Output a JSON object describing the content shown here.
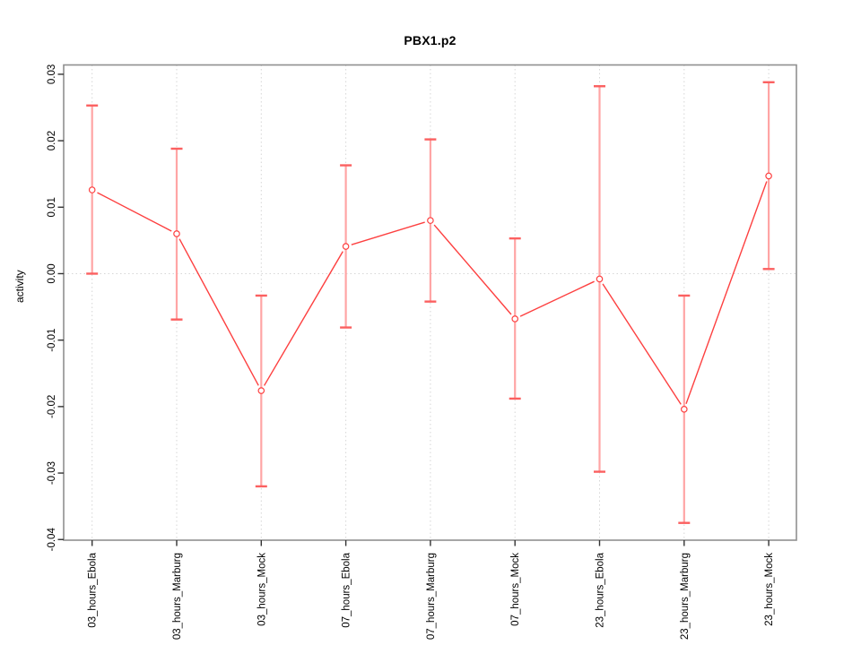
{
  "chart_data": {
    "type": "line",
    "title": "PBX1.p2",
    "xlabel": "",
    "ylabel": "activity",
    "categories": [
      "03_hours_Ebola",
      "03_hours_Marburg",
      "03_hours_Mock",
      "07_hours_Ebola",
      "07_hours_Marburg",
      "07_hours_Mock",
      "23_hours_Ebola",
      "23_hours_Marburg",
      "23_hours_Mock"
    ],
    "series": [
      {
        "name": "activity",
        "values": [
          0.0126,
          0.006,
          -0.0176,
          0.0041,
          0.008,
          -0.0068,
          -0.0008,
          -0.0204,
          0.0147
        ],
        "err_high": [
          0.0253,
          0.0188,
          -0.0033,
          0.0163,
          0.0202,
          0.0053,
          0.0282,
          -0.0033,
          0.0288
        ],
        "err_low": [
          0.0,
          -0.0069,
          -0.032,
          -0.0081,
          -0.0042,
          -0.0188,
          -0.0298,
          -0.0375,
          0.0007
        ]
      }
    ],
    "ylim": [
      -0.0401,
      0.0314
    ],
    "yticks": [
      0.03,
      0.02,
      0.01,
      0.0,
      -0.01,
      -0.02,
      -0.03,
      -0.04
    ],
    "ytick_labels": [
      "0.03",
      "0.02",
      "0.01",
      "0.00",
      "-0.01",
      "-0.02",
      "-0.03",
      "-0.04"
    ],
    "grid": {
      "vertical": "dotted at each category",
      "horizontal": "dotted at y = 0.00"
    },
    "legend": "none",
    "marker": "open-circle",
    "colors": {
      "line": "#fd4040",
      "marker": "#fd4040",
      "error_stem": "#ffa5a5",
      "error_cap": "#fb6060",
      "grid": "#d6d6d6",
      "frame": "#8f8f8f",
      "tick": "#333333",
      "text": "#000000"
    }
  }
}
